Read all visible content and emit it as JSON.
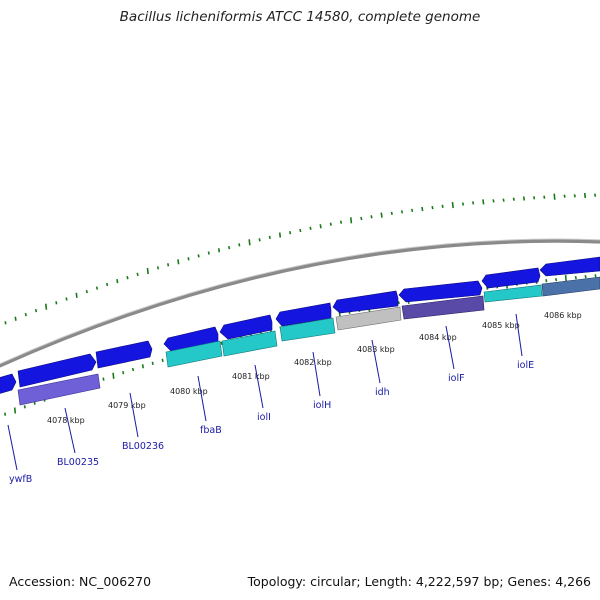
{
  "title": "Bacillus licheniformis ATCC 14580, complete genome",
  "footer": {
    "accession": "Accession: NC_006270",
    "summary": "Topology: circular; Length: 4,222,597 bp; Genes: 4,266"
  },
  "colors": {
    "forward_cds": "#1515e0",
    "reverse_cds_light": "#25c8c8",
    "reverse_cds_dark": "#1e90b4",
    "purple_cds": "#6a5acd",
    "gray_cds": "#bdbdbd",
    "steel_cds": "#4a72a8",
    "backbone": "#888888",
    "gc_ticks": "#1a7a1a",
    "labels": "#1a1aa6"
  },
  "kbp_labels": [
    "4078 kbp",
    "4079 kbp",
    "4080 kbp",
    "4081 kbp",
    "4082 kbp",
    "4083 kbp",
    "4084 kbp",
    "4085 kbp",
    "4086 kbp"
  ],
  "genes": [
    "ywfB",
    "BL00235",
    "BL00236",
    "fbaB",
    "iolI",
    "iolH",
    "idh",
    "iolF",
    "iolE"
  ]
}
